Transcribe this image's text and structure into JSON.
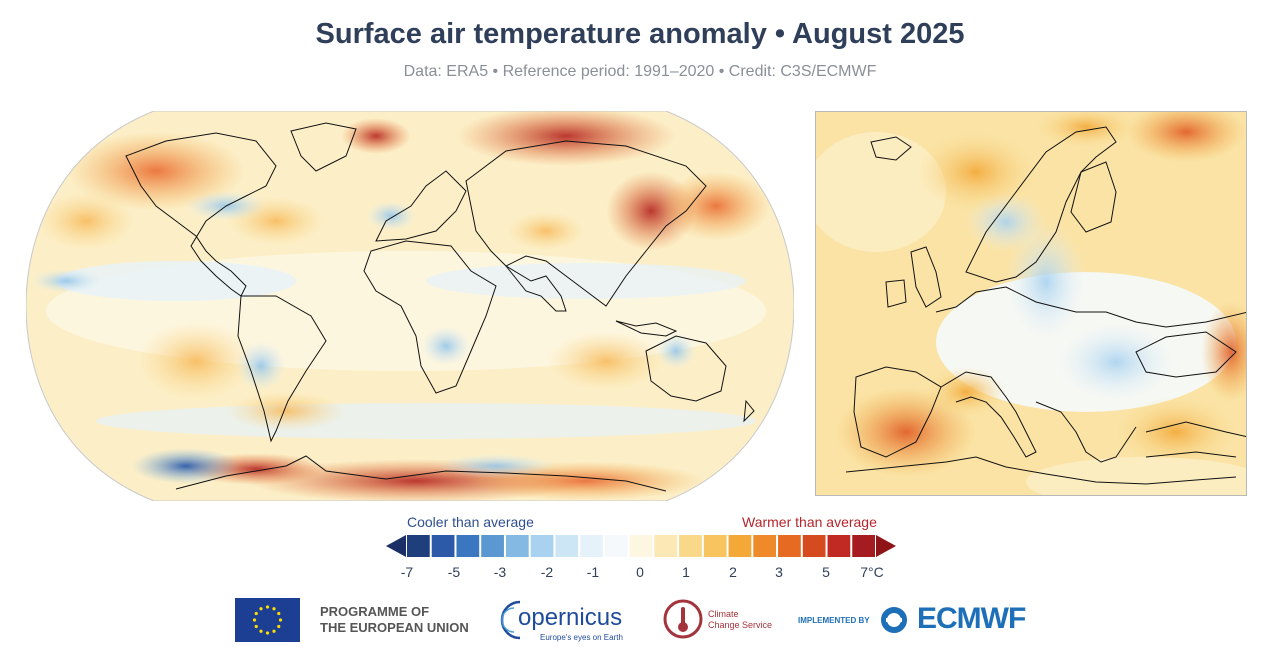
{
  "header": {
    "title": "Surface air temperature anomaly • August 2025",
    "subtitle": "Data: ERA5 • Reference period: 1991–2020 • Credit: C3S/ECMWF"
  },
  "legend": {
    "cooler_label": "Cooler than average",
    "warmer_label": "Warmer than average",
    "ticks": [
      "-7",
      "-5",
      "-3",
      "-2",
      "-1",
      "0",
      "1",
      "2",
      "3",
      "5",
      "7°C"
    ],
    "colors": [
      "#1f3f7c",
      "#2c5aa8",
      "#3b77c0",
      "#5b98d2",
      "#84b9e4",
      "#a9d2f0",
      "#cde6f6",
      "#e6f2fa",
      "#f5f9fc",
      "#fdf6e1",
      "#fbe8b5",
      "#f9d889",
      "#f7c460",
      "#f3a838",
      "#ee8a2a",
      "#e66a22",
      "#d64a1f",
      "#c02a22",
      "#a51b1f"
    ],
    "arrow_left_color": "#1a2f66",
    "arrow_right_color": "#8f1418"
  },
  "logos": {
    "eu_text_line1": "PROGRAMME OF",
    "eu_text_line2": "THE EUROPEAN UNION",
    "copernicus_word": "opernicus",
    "copernicus_tagline": "Europe's eyes on Earth",
    "c3s_line1": "Climate",
    "c3s_line2": "Change Service",
    "implemented_by": "IMPLEMENTED BY",
    "ecmwf": "ECMWF"
  }
}
